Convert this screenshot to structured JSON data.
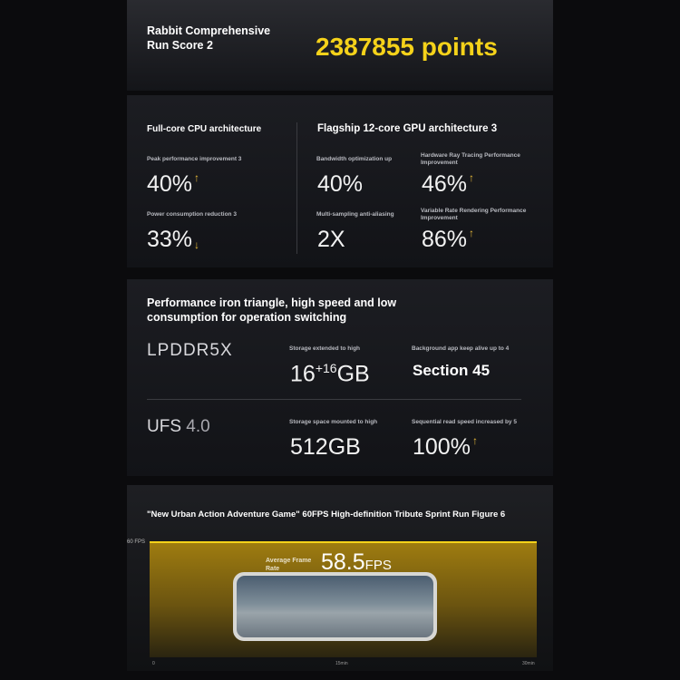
{
  "score": {
    "title_line1": "Rabbit Comprehensive",
    "title_line2": "Run Score 2",
    "value": "2387855 points"
  },
  "arch": {
    "cpu_title": "Full-core CPU architecture",
    "gpu_title": "Flagship 12-core GPU architecture 3",
    "items": [
      {
        "label": "Peak performance improvement 3",
        "value": "40%",
        "trend": "up"
      },
      {
        "label": "Power consumption reduction 3",
        "value": "33%",
        "trend": "down"
      },
      {
        "label": "Bandwidth optimization up",
        "value": "40%"
      },
      {
        "label": "Multi-sampling anti-aliasing",
        "value": "2X"
      },
      {
        "label": "Hardware Ray Tracing Performance Improvement",
        "value": "46%",
        "trend": "up"
      },
      {
        "label": "Variable Rate Rendering Performance Improvement",
        "value": "86%",
        "trend": "up"
      }
    ]
  },
  "memory": {
    "title_line1": "Performance iron triangle, high speed and low",
    "title_line2": "consumption for operation switching",
    "rows": [
      {
        "name": "LPDDR5X",
        "c1_label": "Storage extended to high",
        "c1_value": "16",
        "c1_sup": "+16",
        "c1_unit": "GB",
        "c2_label": "Background app keep alive up to 4",
        "c2_value": "Section 45"
      },
      {
        "name_a": "UFS",
        "name_b": "4.0",
        "c1_label": "Storage space mounted to high",
        "c1_value": "512GB",
        "c2_label": "Sequential read speed increased by 5",
        "c2_value": "100%",
        "c2_trend": "up"
      }
    ]
  },
  "game": {
    "title": "\"New Urban Action Adventure Game\" 60FPS High-definition Tribute Sprint Run Figure 6",
    "y_label": "60 FPS",
    "avg_label_line1": "Average Frame",
    "avg_label_line2": "Rate",
    "avg_value": "58.5",
    "avg_unit": "FPS",
    "x_ticks": [
      "0",
      "15min",
      "30min"
    ],
    "accent": "#f5d21a"
  },
  "colors": {
    "score": "#f5d21a",
    "arrow": "#e7b93a"
  }
}
